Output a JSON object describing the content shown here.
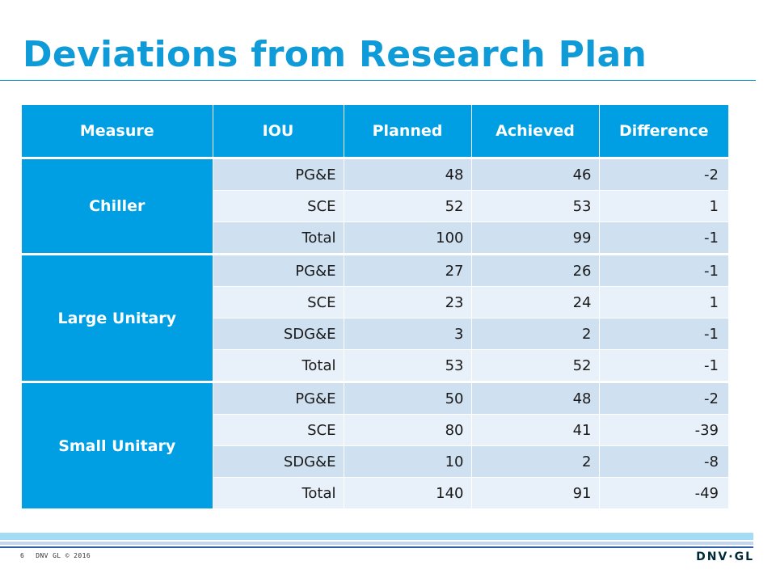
{
  "title": "Deviations from Research Plan",
  "table": {
    "headers": [
      "Measure",
      "IOU",
      "Planned",
      "Achieved",
      "Difference"
    ],
    "groups": [
      {
        "measure": "Chiller",
        "rows": [
          {
            "iou": "PG&E",
            "planned": "48",
            "achieved": "46",
            "difference": "-2"
          },
          {
            "iou": "SCE",
            "planned": "52",
            "achieved": "53",
            "difference": "1"
          },
          {
            "iou": "Total",
            "planned": "100",
            "achieved": "99",
            "difference": "-1"
          }
        ]
      },
      {
        "measure": "Large Unitary",
        "rows": [
          {
            "iou": "PG&E",
            "planned": "27",
            "achieved": "26",
            "difference": "-1"
          },
          {
            "iou": "SCE",
            "planned": "23",
            "achieved": "24",
            "difference": "1"
          },
          {
            "iou": "SDG&E",
            "planned": "3",
            "achieved": "2",
            "difference": "-1"
          },
          {
            "iou": "Total",
            "planned": "53",
            "achieved": "52",
            "difference": "-1"
          }
        ]
      },
      {
        "measure": "Small Unitary",
        "rows": [
          {
            "iou": "PG&E",
            "planned": "50",
            "achieved": "48",
            "difference": "-2"
          },
          {
            "iou": "SCE",
            "planned": "80",
            "achieved": "41",
            "difference": "-39"
          },
          {
            "iou": "SDG&E",
            "planned": "10",
            "achieved": "2",
            "difference": "-8"
          },
          {
            "iou": "Total",
            "planned": "140",
            "achieved": "91",
            "difference": "-49"
          }
        ]
      }
    ]
  },
  "footer": {
    "page_number": "6",
    "copyright": "DNV GL © 2016",
    "logo": "DNV·GL"
  },
  "colors": {
    "accent": "#009fe3",
    "title": "#0f9bd7",
    "row_dark": "#cfe0f1",
    "row_light": "#e8f0f9",
    "footer_band": "#a3dcf4",
    "footer_line": "#2f5da8"
  }
}
